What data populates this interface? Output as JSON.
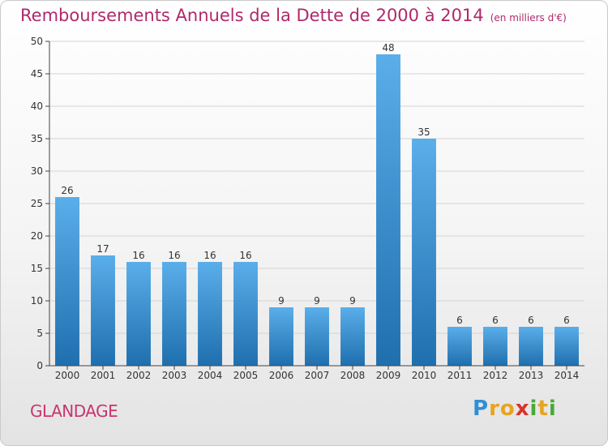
{
  "title": "Remboursements Annuels de la Dette de 2000 à 2014",
  "subtitle": "(en milliers d'€)",
  "commune": "GLANDAGE",
  "logo": {
    "letters": [
      "P",
      "r",
      "o",
      "x",
      "i",
      "t",
      "i"
    ],
    "colors": [
      "#2f8fd6",
      "#e8a321",
      "#e8a321",
      "#d9332b",
      "#4aa83a",
      "#e8a321",
      "#4aa83a"
    ]
  },
  "colors": {
    "title": "#b0296b",
    "bar_top": "#5aaee9",
    "bar_bottom": "#1f6fae",
    "grid": "#d4d4d4",
    "axis": "#444444"
  },
  "chart_data": {
    "type": "bar",
    "title": "Remboursements Annuels de la Dette de 2000 à 2014",
    "subtitle": "(en milliers d'€)",
    "categories": [
      "2000",
      "2001",
      "2002",
      "2003",
      "2004",
      "2005",
      "2006",
      "2007",
      "2008",
      "2009",
      "2010",
      "2011",
      "2012",
      "2013",
      "2014"
    ],
    "values": [
      26,
      17,
      16,
      16,
      16,
      16,
      9,
      9,
      9,
      48,
      35,
      6,
      6,
      6,
      6
    ],
    "ylim": [
      0,
      50
    ],
    "yticks": [
      0,
      5,
      10,
      15,
      20,
      25,
      30,
      35,
      40,
      45,
      50
    ],
    "grid": true,
    "data_labels": true
  }
}
